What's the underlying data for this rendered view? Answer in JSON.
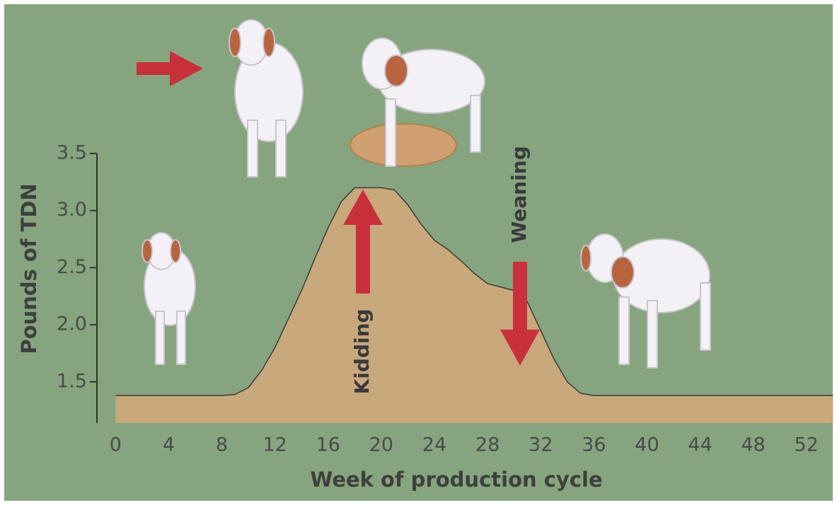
{
  "chart_data": {
    "type": "area",
    "y_label": "Pounds of TDN",
    "x_label": "Week of production cycle",
    "annotations": [
      "Kidding",
      "Weaning"
    ],
    "x": [
      0,
      4,
      8,
      9,
      10,
      11,
      12,
      13,
      14,
      15,
      16,
      17,
      18,
      19,
      20,
      21,
      22,
      23,
      24,
      25,
      26,
      27,
      28,
      29,
      30,
      31,
      32,
      33,
      34,
      35,
      36,
      40,
      44,
      48,
      52,
      54
    ],
    "values": [
      1.38,
      1.38,
      1.38,
      1.39,
      1.45,
      1.6,
      1.8,
      2.05,
      2.3,
      2.58,
      2.85,
      3.08,
      3.2,
      3.2,
      3.2,
      3.18,
      3.05,
      2.88,
      2.74,
      2.66,
      2.56,
      2.45,
      2.36,
      2.33,
      2.3,
      2.2,
      1.95,
      1.7,
      1.5,
      1.4,
      1.38,
      1.38,
      1.38,
      1.38,
      1.38,
      1.38
    ],
    "color": "#c9a87c",
    "xlim": [
      -1.4,
      54.3
    ],
    "ylim": [
      1.14,
      3.5
    ],
    "xticks": [
      0,
      4,
      8,
      12,
      16,
      20,
      24,
      28,
      32,
      36,
      40,
      44,
      48,
      52
    ],
    "yticks": [
      1.5,
      {
        "value": 2,
        "label": "2.0"
      },
      2.5,
      {
        "value": 3,
        "label": "3.0"
      },
      3.5
    ]
  }
}
